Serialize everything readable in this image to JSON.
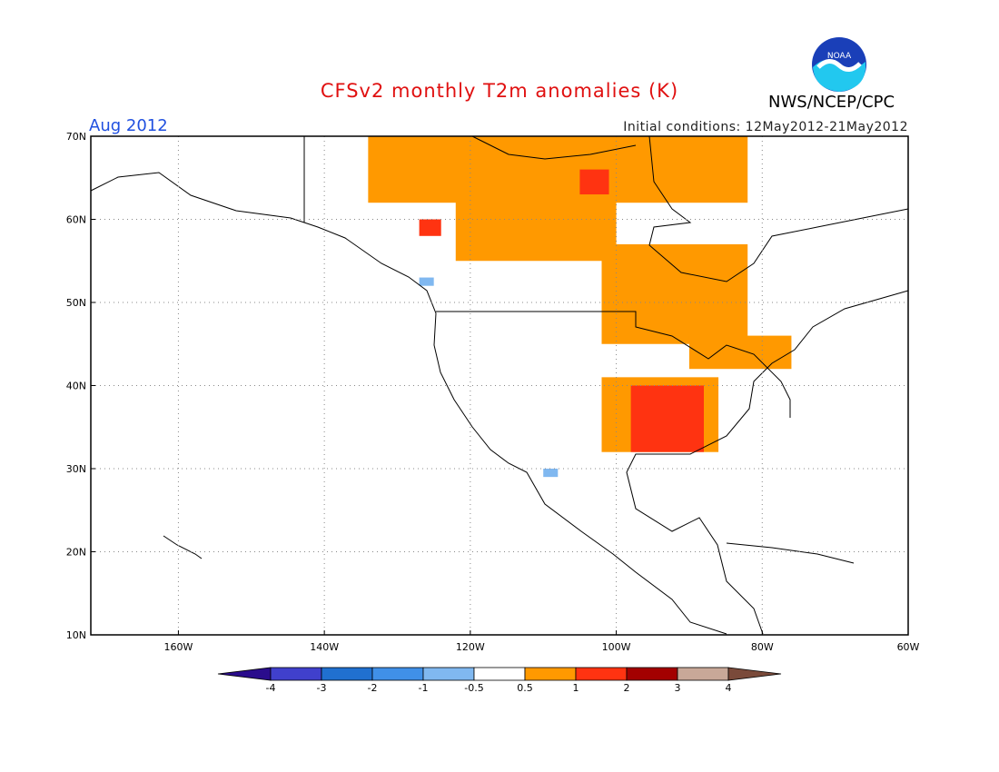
{
  "title": "CFSv2 monthly T2m anomalies (K)",
  "period": "Aug 2012",
  "initial_conditions": "Initial conditions: 12May2012-21May2012",
  "organization": "NWS/NCEP/CPC",
  "logo_text": "NOAA",
  "map": {
    "lat_range": [
      10,
      70
    ],
    "lon_range": [
      -172,
      -60
    ],
    "lat_labels": [
      "10N",
      "20N",
      "30N",
      "40N",
      "50N",
      "60N",
      "70N"
    ],
    "lon_labels": [
      "160W",
      "140W",
      "120W",
      "100W",
      "80W",
      "60W"
    ]
  },
  "colorbar": {
    "labels": [
      "-4",
      "-3",
      "-2",
      "-1",
      "-0.5",
      "0.5",
      "1",
      "2",
      "3",
      "4"
    ],
    "colors": [
      "#2a0c8c",
      "#4040cc",
      "#2070d0",
      "#4090e8",
      "#80b8f0",
      "#ffffff",
      "#ff9900",
      "#ff3311",
      "#a30000",
      "#c8a898",
      "#7a4a3a"
    ]
  },
  "anomaly_regions": [
    {
      "level": "orange",
      "lat": [
        62,
        70
      ],
      "lon": [
        -134,
        -82
      ]
    },
    {
      "level": "orange",
      "lat": [
        55,
        63
      ],
      "lon": [
        -122,
        -100
      ]
    },
    {
      "level": "orange",
      "lat": [
        45,
        57
      ],
      "lon": [
        -102,
        -82
      ]
    },
    {
      "level": "orange",
      "lat": [
        42,
        46
      ],
      "lon": [
        -90,
        -76
      ]
    },
    {
      "level": "orange",
      "lat": [
        32,
        41
      ],
      "lon": [
        -102,
        -86
      ]
    },
    {
      "level": "red",
      "lat": [
        63,
        66
      ],
      "lon": [
        -105,
        -101
      ]
    },
    {
      "level": "red",
      "lat": [
        58,
        60
      ],
      "lon": [
        -127,
        -124
      ]
    },
    {
      "level": "red",
      "lat": [
        32,
        40
      ],
      "lon": [
        -98,
        -88
      ]
    },
    {
      "level": "lightblue",
      "lat": [
        29,
        30
      ],
      "lon": [
        -110,
        -108
      ]
    },
    {
      "level": "lightblue",
      "lat": [
        52,
        53
      ],
      "lon": [
        -127,
        -125
      ]
    }
  ]
}
